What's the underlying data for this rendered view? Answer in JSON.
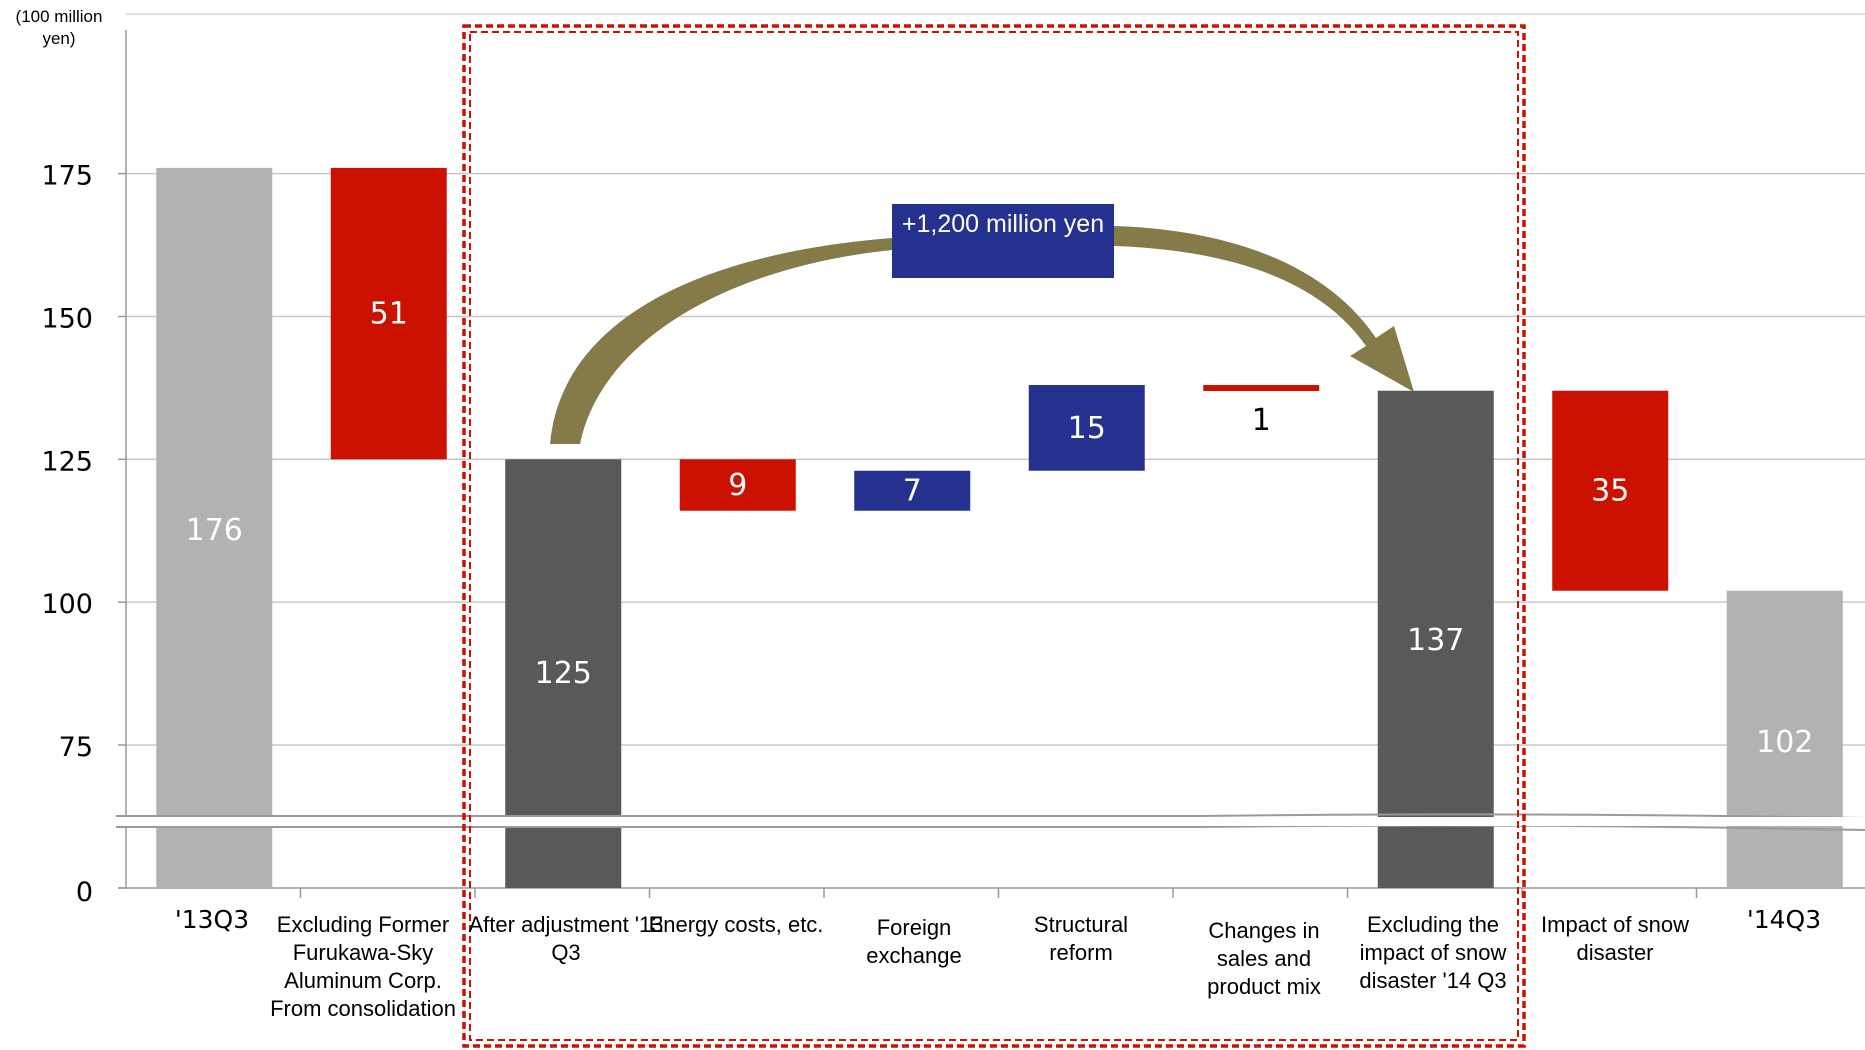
{
  "chart_data": {
    "type": "bar",
    "subtype": "waterfall",
    "unit_label": "(100 million yen)",
    "y_ticks": [
      "0",
      "75",
      "100",
      "125",
      "150",
      "175"
    ],
    "axis_break": "between 0 and 75",
    "ylim": [
      0,
      185
    ],
    "gridlines": true,
    "categories": [
      "'13Q3",
      "Excluding Former Furukawa-Sky Aluminum Corp. From consolidation",
      "After adjustment '13 Q3",
      "Energy costs, etc.",
      "Foreign exchange",
      "Structural reform",
      "Changes in sales and product mix",
      "Excluding the impact of snow disaster '14 Q3",
      "Impact of snow disaster",
      "'14Q3"
    ],
    "bars": [
      {
        "label": "176",
        "value": 176,
        "start": 0,
        "end": 176,
        "kind": "total-light",
        "color": "#b2b2b2"
      },
      {
        "label": "51",
        "value": -51,
        "start": 176,
        "end": 125,
        "kind": "decrease",
        "color": "#cc1100"
      },
      {
        "label": "125",
        "value": 125,
        "start": 0,
        "end": 125,
        "kind": "total-dark",
        "color": "#595959"
      },
      {
        "label": "9",
        "value": -9,
        "start": 125,
        "end": 116,
        "kind": "decrease",
        "color": "#cc1100"
      },
      {
        "label": "7",
        "value": 7,
        "start": 116,
        "end": 123,
        "kind": "increase",
        "color": "#25318f"
      },
      {
        "label": "15",
        "value": 15,
        "start": 123,
        "end": 138,
        "kind": "increase",
        "color": "#25318f"
      },
      {
        "label": "1",
        "value": -1,
        "start": 138,
        "end": 137,
        "kind": "decrease",
        "color": "#cc1100"
      },
      {
        "label": "137",
        "value": 137,
        "start": 0,
        "end": 137,
        "kind": "total-dark",
        "color": "#595959"
      },
      {
        "label": "35",
        "value": -35,
        "start": 137,
        "end": 102,
        "kind": "decrease",
        "color": "#cc1100"
      },
      {
        "label": "102",
        "value": 102,
        "start": 0,
        "end": 102,
        "kind": "total-light",
        "color": "#b2b2b2"
      }
    ],
    "highlight_region": {
      "from": "After adjustment '13 Q3",
      "to": "Excluding the impact of snow disaster '14 Q3",
      "style": "red dashed box"
    },
    "annotation": {
      "text": "+1,200 million yen",
      "arrow_from": "After adjustment '13 Q3",
      "arrow_to": "Excluding the impact of snow disaster '14 Q3"
    }
  },
  "colors": {
    "decrease": "#cc1100",
    "increase": "#25318f",
    "total_dark": "#595959",
    "total_light": "#b2b2b2",
    "arrow": "#857b49",
    "highlight_box": "#cc1100"
  }
}
